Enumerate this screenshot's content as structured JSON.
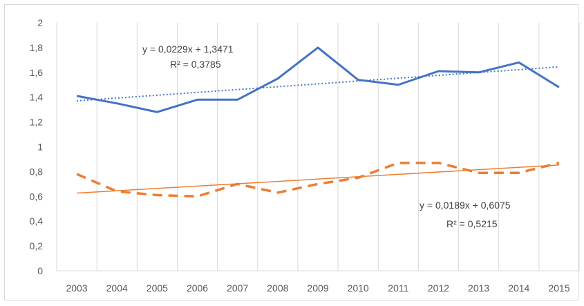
{
  "chart_data": {
    "type": "line",
    "title": "",
    "xlabel": "",
    "ylabel": "",
    "categories": [
      "2003",
      "2004",
      "2005",
      "2006",
      "2007",
      "2008",
      "2009",
      "2010",
      "2011",
      "2012",
      "2013",
      "2014",
      "2015"
    ],
    "ylim": [
      0,
      2
    ],
    "yticks": [
      "0",
      "0,2",
      "0,4",
      "0,6",
      "0,8",
      "1",
      "1,2",
      "1,4",
      "1,6",
      "1,8",
      "2"
    ],
    "grid": "vertical",
    "legend": "none",
    "series": [
      {
        "color": "#4472c4",
        "style": "solid",
        "values": [
          1.41,
          1.35,
          1.28,
          1.38,
          1.38,
          1.55,
          1.8,
          1.54,
          1.5,
          1.61,
          1.6,
          1.68,
          1.48
        ],
        "trendline": {
          "slope": 0.0229,
          "intercept": 1.3471,
          "style": "dotted",
          "equation": "y = 0,0229x + 1,3471",
          "r2": "R² = 0,3785"
        }
      },
      {
        "color": "#ed7d31",
        "style": "dashed",
        "values": [
          0.78,
          0.64,
          0.61,
          0.6,
          0.7,
          0.63,
          0.7,
          0.75,
          0.87,
          0.87,
          0.79,
          0.79,
          0.87
        ],
        "trendline": {
          "slope": 0.0189,
          "intercept": 0.6075,
          "style": "solid",
          "equation": "y = 0,0189x + 0,6075",
          "r2": "R² = 0,5215"
        }
      }
    ]
  }
}
